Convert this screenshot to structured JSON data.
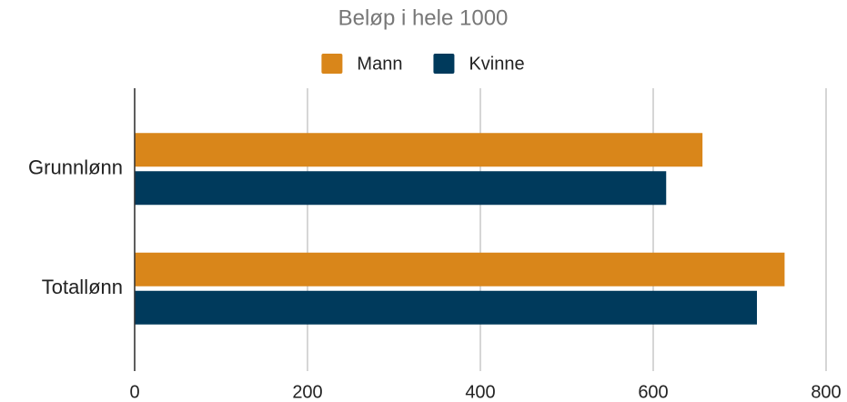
{
  "chart_data": {
    "type": "hbar",
    "title": "Beløp i hele 1000",
    "categories": [
      "Grunnlønn",
      "Totallønn"
    ],
    "series": [
      {
        "name": "Mann",
        "color": "#d9861a",
        "values": [
          657,
          752
        ]
      },
      {
        "name": "Kvinne",
        "color": "#003a5c",
        "values": [
          615,
          720
        ]
      }
    ],
    "xlim": [
      0,
      800
    ],
    "xticks": [
      0,
      200,
      400,
      600,
      800
    ],
    "grid": true,
    "legend": "top"
  }
}
